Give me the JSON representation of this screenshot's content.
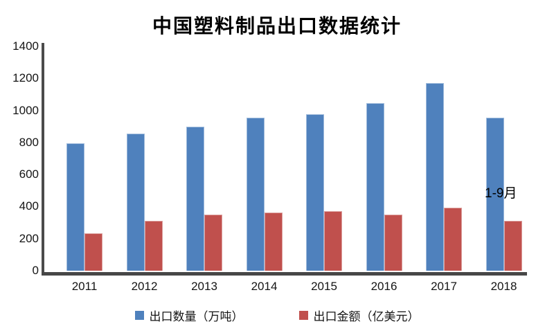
{
  "page": {
    "background": "#ffffff",
    "axis_color": "#4a4a4a",
    "text_color": "#141414"
  },
  "chart_data": {
    "type": "bar",
    "title": "中国塑料制品出口数据统计",
    "categories": [
      "2011",
      "2012",
      "2013",
      "2014",
      "2015",
      "2016",
      "2017",
      "2018"
    ],
    "series": [
      {
        "name": "出口数量（万吨）",
        "color": "#4F81BD",
        "values": [
          797,
          855,
          900,
          955,
          978,
          1045,
          1172,
          955
        ]
      },
      {
        "name": "出口金额（亿美元）",
        "color": "#C0504D",
        "values": [
          233,
          312,
          350,
          362,
          370,
          350,
          393,
          312
        ]
      }
    ],
    "xlabel": "",
    "ylabel": "",
    "ylim": [
      0,
      1400
    ],
    "y_tick_step": 200,
    "y_ticks": [
      1400,
      1200,
      1000,
      800,
      600,
      400,
      200,
      0
    ],
    "annotation": "1-9月",
    "annotation_target_category": "2018",
    "legend_position": "bottom",
    "grid": false
  }
}
